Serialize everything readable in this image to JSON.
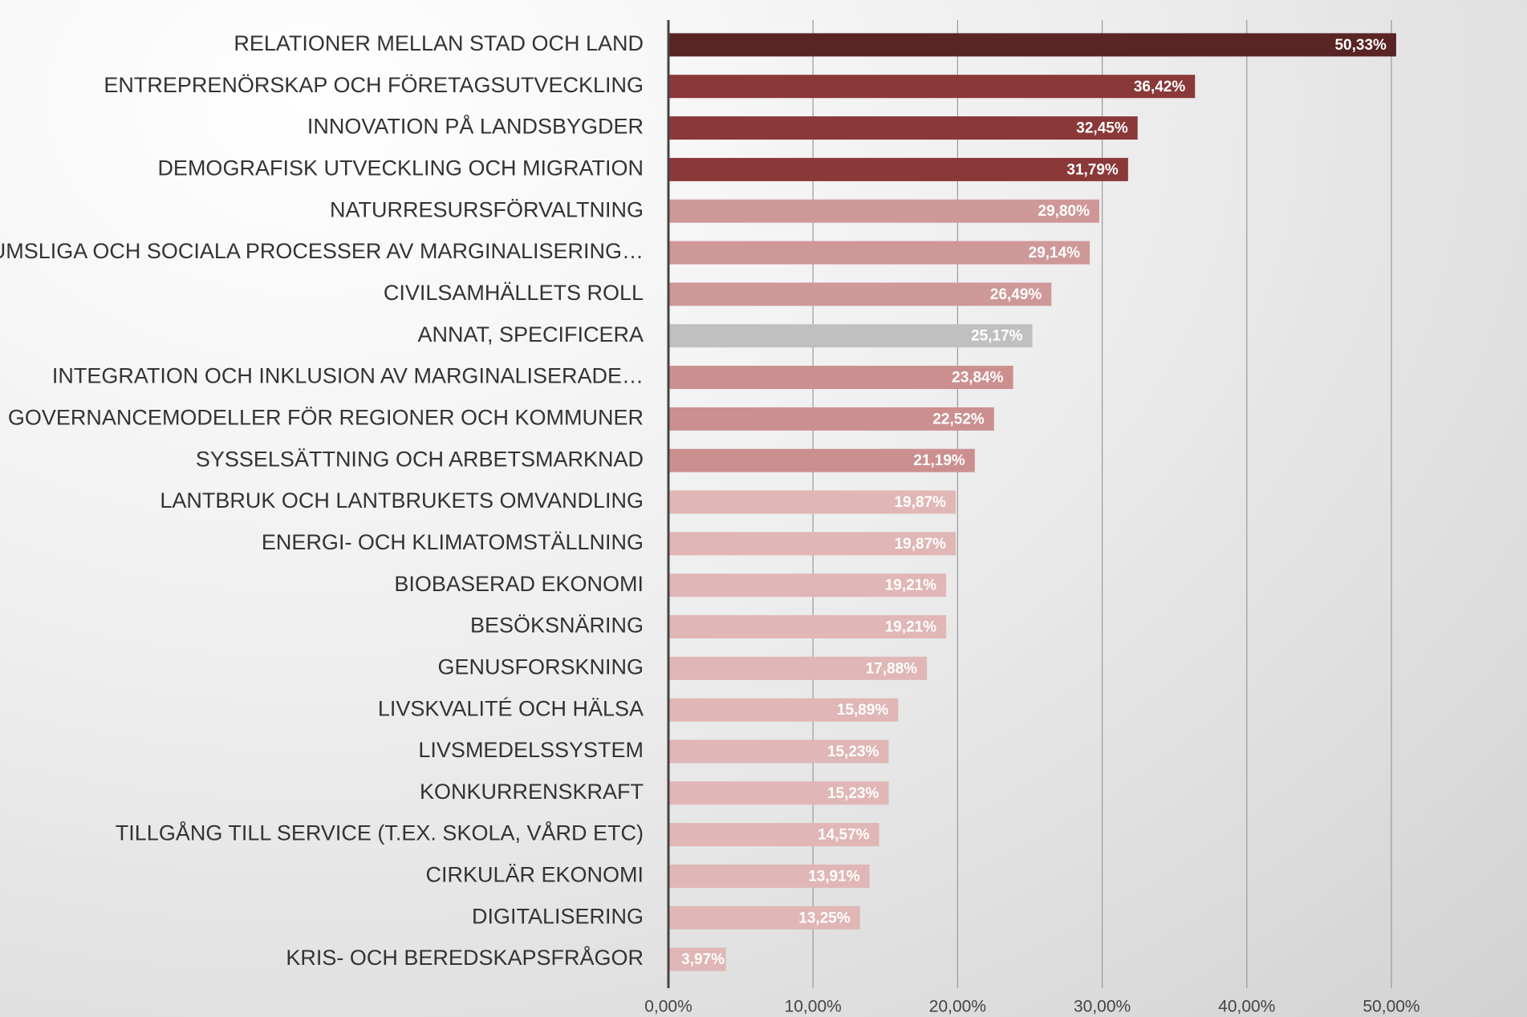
{
  "chart_data": {
    "type": "hbar",
    "categories": [
      "RELATIONER MELLAN STAD OCH LAND",
      "ENTREPRENÖRSKAP OCH FÖRETAGSUTVECKLING",
      "INNOVATION PÅ LANDSBYGDER",
      "DEMOGRAFISK UTVECKLING OCH MIGRATION",
      "NATURRESURSFÖRVALTNING",
      "RUMSLIGA OCH SOCIALA PROCESSER AV MARGINALISERING…",
      "CIVILSAMHÄLLETS ROLL",
      "ANNAT, SPECIFICERA",
      "INTEGRATION OCH INKLUSION AV MARGINALISERADE…",
      "GOVERNANCEMODELLER FÖR REGIONER OCH KOMMUNER",
      "SYSSELSÄTTNING OCH ARBETSMARKNAD",
      "LANTBRUK OCH LANTBRUKETS OMVANDLING",
      "ENERGI- OCH KLIMATOMSTÄLLNING",
      "BIOBASERAD EKONOMI",
      "BESÖKSNÄRING",
      "GENUSFORSKNING",
      "LIVSKVALITÉ OCH HÄLSA",
      "LIVSMEDELSSYSTEM",
      "KONKURRENSKRAFT",
      "TILLGÅNG TILL SERVICE (T.EX. SKOLA, VÅRD ETC)",
      "CIRKULÄR EKONOMI",
      "DIGITALISERING",
      "KRIS- OCH BEREDSKAPSFRÅGOR"
    ],
    "values": [
      50.33,
      36.42,
      32.45,
      31.79,
      29.8,
      29.14,
      26.49,
      25.17,
      23.84,
      22.52,
      21.19,
      19.87,
      19.87,
      19.21,
      19.21,
      17.88,
      15.89,
      15.23,
      15.23,
      14.57,
      13.91,
      13.25,
      3.97
    ],
    "value_labels": [
      "50,33%",
      "36,42%",
      "32,45%",
      "31,79%",
      "29,80%",
      "29,14%",
      "26,49%",
      "25,17%",
      "23,84%",
      "22,52%",
      "21,19%",
      "19,87%",
      "19,87%",
      "19,21%",
      "19,21%",
      "17,88%",
      "15,89%",
      "15,23%",
      "15,23%",
      "14,57%",
      "13,91%",
      "13,25%",
      "3,97%"
    ],
    "colors": [
      "#5a2424",
      "#8a3838",
      "#8a3838",
      "#8a3838",
      "#cf9898",
      "#cf9898",
      "#cf9898",
      "#c0c0c0",
      "#cc8f8f",
      "#cc8f8f",
      "#cc8f8f",
      "#e0b6b6",
      "#e0b6b6",
      "#e0b6b6",
      "#e0b6b6",
      "#e0b6b6",
      "#e0b6b6",
      "#e0b6b6",
      "#e0b6b6",
      "#e0b6b6",
      "#e0b6b6",
      "#e0b6b6",
      "#e0b6b6"
    ],
    "xlim": [
      0,
      50
    ],
    "xticks": [
      {
        "value": 0,
        "label": "0,00%"
      },
      {
        "value": 10,
        "label": "10,00%"
      },
      {
        "value": 20,
        "label": "20,00%"
      },
      {
        "value": 30,
        "label": "30,00%"
      },
      {
        "value": 40,
        "label": "40,00%"
      },
      {
        "value": 50,
        "label": "50,00%"
      }
    ],
    "grid": true
  }
}
